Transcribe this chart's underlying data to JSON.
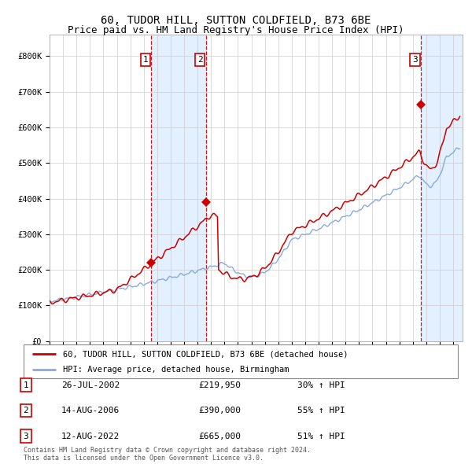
{
  "title": "60, TUDOR HILL, SUTTON COLDFIELD, B73 6BE",
  "subtitle": "Price paid vs. HM Land Registry's House Price Index (HPI)",
  "title_fontsize": 10,
  "subtitle_fontsize": 9,
  "background_color": "#ffffff",
  "plot_bg_color": "#ffffff",
  "grid_color": "#cccccc",
  "purchases": [
    {
      "date_num": 2002.57,
      "price": 219950,
      "label": "1"
    },
    {
      "date_num": 2006.62,
      "price": 390000,
      "label": "2"
    },
    {
      "date_num": 2022.62,
      "price": 665000,
      "label": "3"
    }
  ],
  "vline_color": "#cc0000",
  "shade_color": "#ddeeff",
  "marker_color": "#cc0000",
  "hpi_line_color": "#88aadd",
  "price_line_color": "#cc0000",
  "legend_items": [
    "60, TUDOR HILL, SUTTON COLDFIELD, B73 6BE (detached house)",
    "HPI: Average price, detached house, Birmingham"
  ],
  "table_entries": [
    {
      "num": "1",
      "date": "26-JUL-2002",
      "price": "£219,950",
      "change": "30% ↑ HPI"
    },
    {
      "num": "2",
      "date": "14-AUG-2006",
      "price": "£390,000",
      "change": "55% ↑ HPI"
    },
    {
      "num": "3",
      "date": "12-AUG-2022",
      "price": "£665,000",
      "change": "51% ↑ HPI"
    }
  ],
  "footer": "Contains HM Land Registry data © Crown copyright and database right 2024.\nThis data is licensed under the Open Government Licence v3.0.",
  "ylim": [
    0,
    860000
  ],
  "yticks": [
    0,
    100000,
    200000,
    300000,
    400000,
    500000,
    600000,
    700000,
    800000
  ],
  "ytick_labels": [
    "£0",
    "£100K",
    "£200K",
    "£300K",
    "£400K",
    "£500K",
    "£600K",
    "£700K",
    "£800K"
  ],
  "xlim_start": 1995.0,
  "xlim_end": 2025.7
}
